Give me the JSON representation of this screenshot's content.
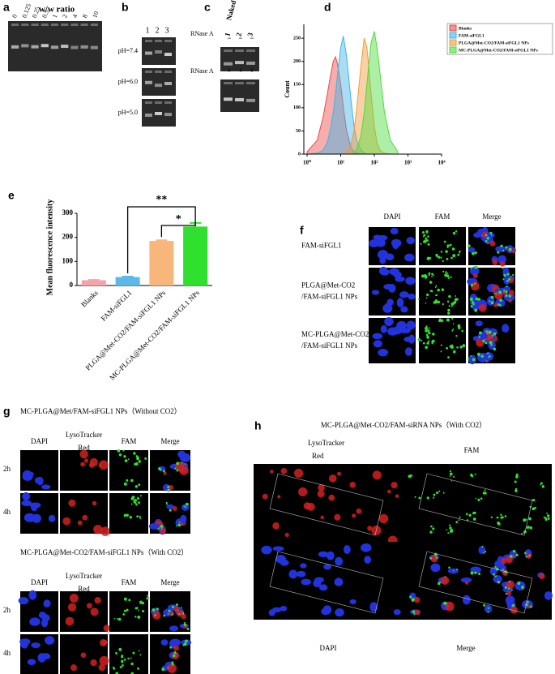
{
  "panel_a": {
    "label": "a",
    "title": "w/w ratio",
    "lanes": [
      "0",
      "0.125",
      "0.25",
      "0.5",
      "1",
      "2",
      "4",
      "8",
      "10"
    ]
  },
  "panel_b": {
    "label": "b",
    "lanes": [
      "1",
      "2",
      "3"
    ],
    "rows": [
      "pH=7.4",
      "pH=6.0",
      "pH=5.0"
    ]
  },
  "panel_c": {
    "label": "c",
    "column_title": "Naked siRNA",
    "lanes": [
      "1",
      "2",
      "3"
    ],
    "rows": [
      {
        "label": "RNase A",
        "marks": [
          "−",
          "−",
          "−"
        ]
      },
      {
        "label": "RNase A",
        "marks": [
          "+",
          "+",
          "+"
        ]
      }
    ]
  },
  "chart_data": [
    {
      "type": "area",
      "label": "d",
      "ylabel": "Count",
      "log_x": true,
      "legend": "right",
      "x": [
        1,
        2,
        3,
        4,
        5,
        6,
        7,
        8,
        10,
        12,
        15,
        20,
        25,
        30,
        40,
        50,
        60,
        70,
        80,
        100,
        120,
        150,
        200,
        300,
        500
      ],
      "series": [
        {
          "name": "Blanks",
          "color": "#e84a4a",
          "values": [
            5,
            30,
            80,
            130,
            170,
            200,
            210,
            195,
            150,
            100,
            50,
            15,
            5,
            2,
            0,
            0,
            0,
            0,
            0,
            0,
            0,
            0,
            0,
            0,
            0
          ]
        },
        {
          "name": "FAM-siFGL1",
          "color": "#3fb4e6",
          "values": [
            0,
            2,
            8,
            25,
            55,
            90,
            130,
            170,
            230,
            255,
            210,
            120,
            60,
            30,
            10,
            3,
            0,
            0,
            0,
            0,
            0,
            0,
            0,
            0,
            0
          ]
        },
        {
          "name": "PLGA@Met-CO2/FAM-siFGL1 NPs",
          "color": "#f39a3c",
          "values": [
            0,
            0,
            0,
            0,
            0,
            0,
            0,
            0,
            0,
            2,
            5,
            20,
            50,
            100,
            190,
            250,
            230,
            180,
            130,
            60,
            25,
            8,
            2,
            0,
            0
          ]
        },
        {
          "name": "MC-PLGA@Met-CO2/FAM-siFGL1 NPs",
          "color": "#4cdc3c",
          "values": [
            0,
            0,
            0,
            0,
            0,
            0,
            0,
            0,
            0,
            0,
            0,
            0,
            3,
            10,
            40,
            90,
            150,
            200,
            240,
            265,
            230,
            170,
            90,
            30,
            5
          ]
        }
      ],
      "xlim": [
        0.8,
        10000
      ],
      "xticks": [
        {
          "value": 1,
          "label": "10⁰"
        },
        {
          "value": 10,
          "label": "10¹"
        },
        {
          "value": 100,
          "label": "10²"
        },
        {
          "value": 1000,
          "label": "10³"
        },
        {
          "value": 10000,
          "label": "10⁴"
        }
      ],
      "ylim": [
        0,
        280
      ],
      "yticks": [
        0,
        50,
        100,
        150,
        200,
        250
      ]
    },
    {
      "type": "bar",
      "label": "e",
      "ylabel": "Mean fluorescence intensity",
      "categories": [
        "Blanks",
        "FAM-siFGL1",
        "PLGA@Met-CO2/FAM-siFGL1 NPs",
        "MC-PLGA@Met-CO2/FAM-siFGL1 NPs"
      ],
      "values": [
        22,
        35,
        185,
        245
      ],
      "errors": [
        1,
        2,
        3,
        15
      ],
      "colors": [
        "#f4a3ab",
        "#5bb8e8",
        "#f8b77a",
        "#2fe02f"
      ],
      "ylim": [
        0,
        300
      ],
      "yticks": [
        0,
        100,
        200,
        300
      ],
      "annotations": [
        "**",
        "*"
      ]
    }
  ],
  "panel_f": {
    "label": "f",
    "columns": [
      "DAPI",
      "FAM",
      "Merge"
    ],
    "rows": [
      [
        "FAM-siFGL1"
      ],
      [
        "PLGA@Met-CO2",
        "/FAM-siFGL1 NPs"
      ],
      [
        "MC-PLGA@Met-CO2",
        "/FAM-siFGL1 NPs"
      ]
    ]
  },
  "panel_g": {
    "label": "g",
    "groups": [
      {
        "title": "MC-PLGA@Met/FAM-siFGL1 NPs（Without CO2）",
        "columns": [
          [
            "DAPI"
          ],
          [
            "LysoTracker",
            "Red"
          ],
          [
            "FAM"
          ],
          [
            "Merge"
          ]
        ],
        "rows": [
          "2h",
          "4h"
        ]
      },
      {
        "title": "MC-PLGA@Met-CO2/FAM-siFGL1 NPs（With CO2）",
        "columns": [
          [
            "DAPI"
          ],
          [
            "LysoTracker",
            "Red"
          ],
          [
            "FAM"
          ],
          [
            "Merge"
          ]
        ],
        "rows": [
          "2h",
          "4h"
        ]
      }
    ]
  },
  "panel_h": {
    "label": "h",
    "title": "MC-PLGA@Met-CO2/FAM-siRNA NPs（With CO2）",
    "lyso": [
      "LysoTracker",
      "Red"
    ],
    "fam": "FAM",
    "dapi": "DAPI",
    "merge": "Merge"
  }
}
